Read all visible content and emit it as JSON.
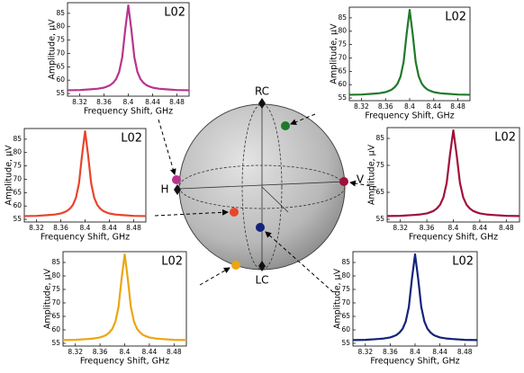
{
  "chart_data": [
    {
      "type": "line",
      "annotation": "L02",
      "xlabel": "Frequency Shift, GHz",
      "ylabel": "Amplitude, μV",
      "color": "#b8348e",
      "x": [
        8.3,
        8.32,
        8.34,
        8.35,
        8.36,
        8.365,
        8.37,
        8.375,
        8.38,
        8.385,
        8.39,
        8.395,
        8.4,
        8.405,
        8.41,
        8.415,
        8.42,
        8.425,
        8.43,
        8.435,
        8.44,
        8.45,
        8.46,
        8.48,
        8.5
      ],
      "values": [
        56.2,
        56.3,
        56.6,
        56.8,
        57.2,
        57.6,
        58.1,
        59.0,
        60.4,
        63.1,
        68.5,
        79.0,
        88,
        79.0,
        68.5,
        63.1,
        60.4,
        59.0,
        58.1,
        57.6,
        57.2,
        56.8,
        56.6,
        56.3,
        56.2
      ],
      "xlim": [
        8.3,
        8.5
      ],
      "xticks": [
        8.32,
        8.36,
        8.4,
        8.44,
        8.48
      ],
      "ylim": [
        54,
        89
      ],
      "yticks": [
        55,
        60,
        65,
        70,
        75,
        80,
        85
      ]
    },
    {
      "type": "line",
      "annotation": "L02",
      "xlabel": "Frequency Shift, GHz",
      "ylabel": "Amplitude, μV",
      "color": "#1f7a2a",
      "x": [
        8.3,
        8.32,
        8.34,
        8.35,
        8.36,
        8.365,
        8.37,
        8.375,
        8.38,
        8.385,
        8.39,
        8.395,
        8.4,
        8.405,
        8.41,
        8.415,
        8.42,
        8.425,
        8.43,
        8.435,
        8.44,
        8.45,
        8.46,
        8.48,
        8.5
      ],
      "values": [
        56.2,
        56.3,
        56.6,
        56.8,
        57.2,
        57.6,
        58.1,
        59.0,
        60.4,
        63.1,
        68.5,
        79.0,
        88,
        79.0,
        68.5,
        63.1,
        60.4,
        59.0,
        58.1,
        57.6,
        57.2,
        56.8,
        56.6,
        56.3,
        56.2
      ],
      "xlim": [
        8.3,
        8.5
      ],
      "xticks": [
        8.32,
        8.36,
        8.4,
        8.44,
        8.48
      ],
      "ylim": [
        54,
        89
      ],
      "yticks": [
        55,
        60,
        65,
        70,
        75,
        80,
        85
      ]
    },
    {
      "type": "line",
      "annotation": "L02",
      "xlabel": "Frequency Shift, GHz",
      "ylabel": "Amplitude, μV",
      "color": "#e8442c",
      "x": [
        8.3,
        8.32,
        8.34,
        8.35,
        8.36,
        8.365,
        8.37,
        8.375,
        8.38,
        8.385,
        8.39,
        8.395,
        8.4,
        8.405,
        8.41,
        8.415,
        8.42,
        8.425,
        8.43,
        8.435,
        8.44,
        8.45,
        8.46,
        8.48,
        8.5
      ],
      "values": [
        56.2,
        56.3,
        56.6,
        56.8,
        57.2,
        57.6,
        58.1,
        59.0,
        60.4,
        63.1,
        68.5,
        79.0,
        88,
        79.0,
        68.5,
        63.1,
        60.4,
        59.0,
        58.1,
        57.6,
        57.2,
        56.8,
        56.6,
        56.3,
        56.2
      ],
      "xlim": [
        8.3,
        8.5
      ],
      "xticks": [
        8.32,
        8.36,
        8.4,
        8.44,
        8.48
      ],
      "ylim": [
        54,
        89
      ],
      "yticks": [
        55,
        60,
        65,
        70,
        75,
        80,
        85
      ]
    },
    {
      "type": "line",
      "annotation": "L02",
      "xlabel": "Frequency Shift, GHz",
      "ylabel": "Amplitude, μV",
      "color": "#a0103a",
      "x": [
        8.3,
        8.32,
        8.34,
        8.35,
        8.36,
        8.365,
        8.37,
        8.375,
        8.38,
        8.385,
        8.39,
        8.395,
        8.4,
        8.405,
        8.41,
        8.415,
        8.42,
        8.425,
        8.43,
        8.435,
        8.44,
        8.45,
        8.46,
        8.48,
        8.5
      ],
      "values": [
        56.2,
        56.3,
        56.6,
        56.8,
        57.2,
        57.6,
        58.1,
        59.0,
        60.4,
        63.1,
        68.5,
        79.0,
        88,
        79.0,
        68.5,
        63.1,
        60.4,
        59.0,
        58.1,
        57.6,
        57.2,
        56.8,
        56.6,
        56.3,
        56.2
      ],
      "xlim": [
        8.3,
        8.5
      ],
      "xticks": [
        8.32,
        8.36,
        8.4,
        8.44,
        8.48
      ],
      "ylim": [
        54,
        89
      ],
      "yticks": [
        55,
        65,
        75,
        85
      ]
    },
    {
      "type": "line",
      "annotation": "L02",
      "xlabel": "Frequency Shift, GHz",
      "ylabel": "Amplitude, μV",
      "color": "#eda512",
      "x": [
        8.3,
        8.32,
        8.34,
        8.35,
        8.36,
        8.365,
        8.37,
        8.375,
        8.38,
        8.385,
        8.39,
        8.395,
        8.4,
        8.405,
        8.41,
        8.415,
        8.42,
        8.425,
        8.43,
        8.435,
        8.44,
        8.45,
        8.46,
        8.48,
        8.5
      ],
      "values": [
        56.2,
        56.3,
        56.6,
        56.8,
        57.2,
        57.6,
        58.1,
        59.0,
        60.4,
        63.1,
        68.5,
        79.0,
        88,
        79.0,
        68.5,
        63.1,
        60.4,
        59.0,
        58.1,
        57.6,
        57.2,
        56.8,
        56.6,
        56.3,
        56.2
      ],
      "xlim": [
        8.3,
        8.5
      ],
      "xticks": [
        8.32,
        8.36,
        8.4,
        8.44,
        8.48
      ],
      "ylim": [
        54,
        89
      ],
      "yticks": [
        55,
        60,
        65,
        70,
        75,
        80,
        85
      ]
    },
    {
      "type": "line",
      "annotation": "L02",
      "xlabel": "Frequency Shift, GHz",
      "ylabel": "Amplitude, μV",
      "color": "#13237a",
      "x": [
        8.3,
        8.32,
        8.34,
        8.35,
        8.36,
        8.365,
        8.37,
        8.375,
        8.38,
        8.385,
        8.39,
        8.395,
        8.4,
        8.405,
        8.41,
        8.415,
        8.42,
        8.425,
        8.43,
        8.435,
        8.44,
        8.45,
        8.46,
        8.48,
        8.5
      ],
      "values": [
        56.2,
        56.3,
        56.6,
        56.8,
        57.2,
        57.6,
        58.1,
        59.0,
        60.4,
        63.1,
        68.5,
        79.0,
        88,
        79.0,
        68.5,
        63.1,
        60.4,
        59.0,
        58.1,
        57.6,
        57.2,
        56.8,
        56.6,
        56.3,
        56.2
      ],
      "xlim": [
        8.3,
        8.5
      ],
      "xticks": [
        8.32,
        8.36,
        8.4,
        8.44,
        8.48
      ],
      "ylim": [
        54,
        89
      ],
      "yticks": [
        55,
        60,
        65,
        70,
        75,
        80,
        85
      ]
    }
  ],
  "sphere": {
    "top": "RC",
    "left": "H",
    "right": "V",
    "bottom": "LC"
  }
}
